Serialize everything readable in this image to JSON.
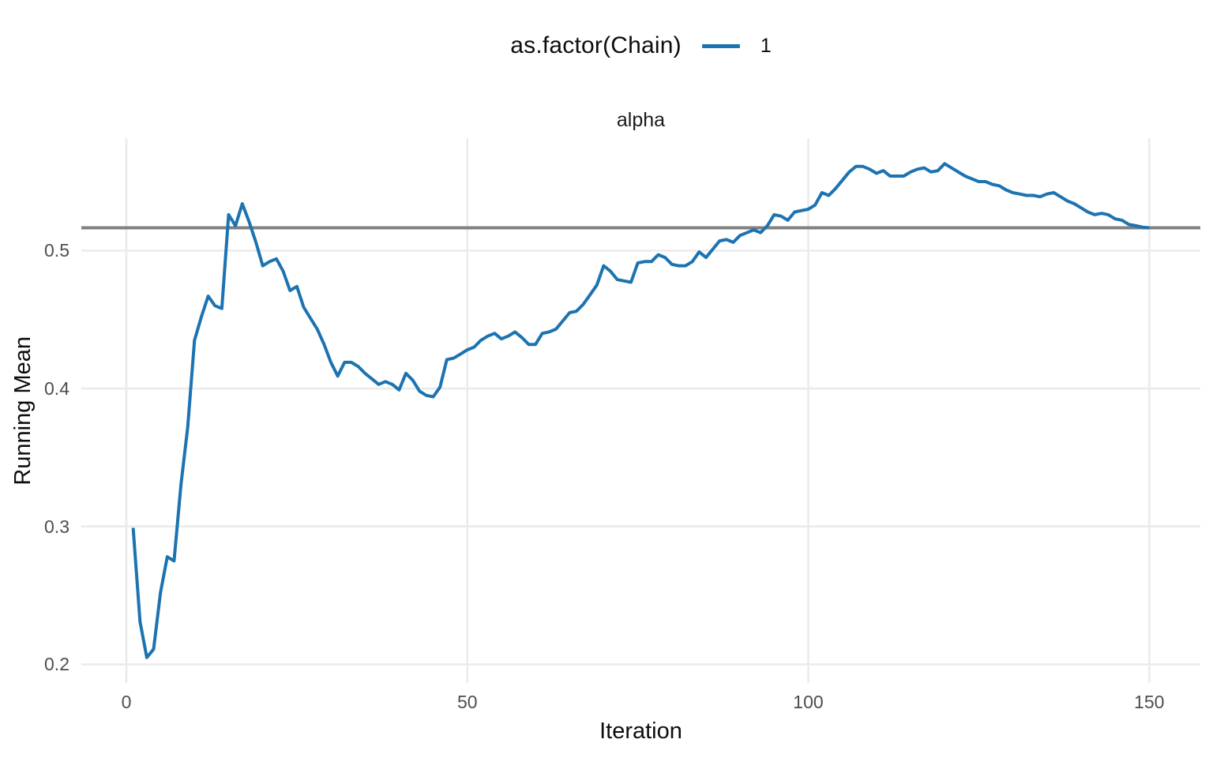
{
  "colors": {
    "line": "#1c73b1",
    "grid": "#ebebeb",
    "reference_line": "#808080",
    "tick_text": "#4d4d4d",
    "title_text": "#0d0d0d",
    "background": "#ffffff"
  },
  "legend": {
    "title": "as.factor(Chain)",
    "items": [
      {
        "label": "1",
        "color": "#1c73b1"
      }
    ]
  },
  "chart_data": {
    "type": "line",
    "title": "alpha",
    "xlabel": "Iteration",
    "ylabel": "Running Mean",
    "legend_title": "as.factor(Chain)",
    "legend_position": "top-center",
    "grid": "major-only",
    "xlim": [
      -6.6,
      157.5
    ],
    "ylim": [
      0.1865,
      0.5815
    ],
    "x_ticks": [
      0,
      50,
      100,
      150
    ],
    "y_ticks": [
      0.2,
      0.3,
      0.4,
      0.5
    ],
    "reference_line_y": 0.5165,
    "series": [
      {
        "name": "1",
        "color": "#1c73b1",
        "x_start": 1,
        "x_step": 1,
        "values": [
          0.299,
          0.231,
          0.205,
          0.211,
          0.252,
          0.278,
          0.275,
          0.33,
          0.372,
          0.435,
          0.452,
          0.467,
          0.46,
          0.458,
          0.526,
          0.518,
          0.534,
          0.521,
          0.506,
          0.489,
          0.492,
          0.494,
          0.485,
          0.471,
          0.474,
          0.459,
          0.451,
          0.443,
          0.432,
          0.419,
          0.409,
          0.419,
          0.419,
          0.416,
          0.411,
          0.407,
          0.403,
          0.405,
          0.403,
          0.399,
          0.411,
          0.406,
          0.398,
          0.395,
          0.394,
          0.401,
          0.421,
          0.422,
          0.425,
          0.428,
          0.43,
          0.435,
          0.438,
          0.44,
          0.436,
          0.438,
          0.441,
          0.437,
          0.432,
          0.432,
          0.44,
          0.441,
          0.443,
          0.449,
          0.455,
          0.456,
          0.461,
          0.468,
          0.475,
          0.489,
          0.485,
          0.479,
          0.478,
          0.477,
          0.491,
          0.492,
          0.492,
          0.497,
          0.495,
          0.49,
          0.489,
          0.489,
          0.492,
          0.499,
          0.495,
          0.501,
          0.507,
          0.508,
          0.506,
          0.511,
          0.513,
          0.515,
          0.513,
          0.518,
          0.526,
          0.525,
          0.522,
          0.528,
          0.529,
          0.53,
          0.533,
          0.542,
          0.54,
          0.545,
          0.551,
          0.557,
          0.561,
          0.561,
          0.559,
          0.556,
          0.558,
          0.554,
          0.554,
          0.554,
          0.557,
          0.559,
          0.56,
          0.557,
          0.558,
          0.563,
          0.56,
          0.557,
          0.554,
          0.552,
          0.55,
          0.55,
          0.548,
          0.547,
          0.544,
          0.542,
          0.541,
          0.54,
          0.54,
          0.539,
          0.541,
          0.542,
          0.539,
          0.536,
          0.534,
          0.531,
          0.528,
          0.526,
          0.527,
          0.526,
          0.523,
          0.522,
          0.519,
          0.518,
          0.517,
          0.5165
        ]
      }
    ]
  }
}
